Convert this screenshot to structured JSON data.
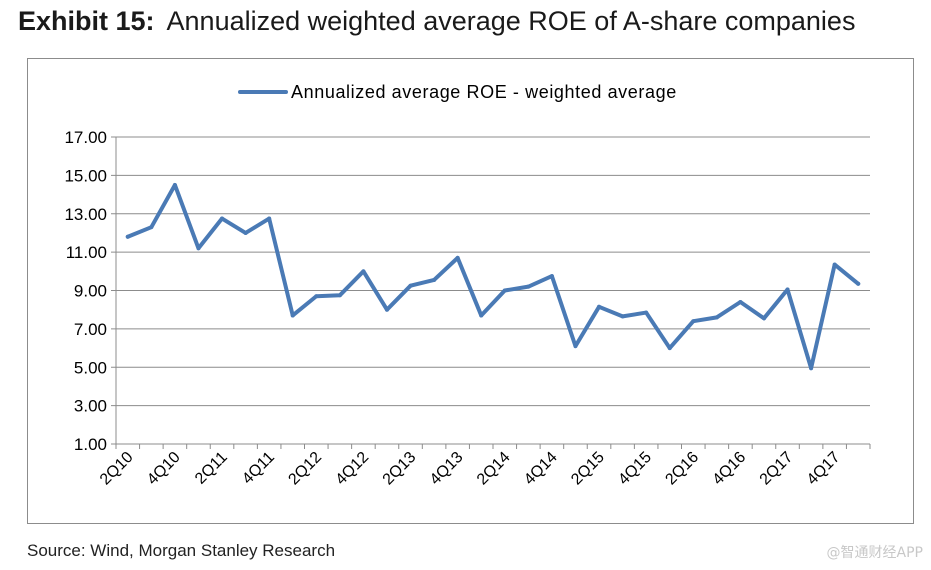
{
  "header": {
    "exhibit_label": "Exhibit 15:",
    "title_text": "Annualized weighted average ROE of A-share companies"
  },
  "footer": {
    "source": "Source: Wind, Morgan Stanley Research",
    "watermark": "@智通财经APP"
  },
  "chart_data": {
    "type": "line",
    "title": "",
    "xlabel": "",
    "ylabel": "",
    "ylim": [
      1,
      17
    ],
    "yticks": [
      "1.00",
      "3.00",
      "5.00",
      "7.00",
      "9.00",
      "11.00",
      "13.00",
      "15.00",
      "17.00"
    ],
    "grid": true,
    "legend_position": "top-center",
    "x": [
      "2Q10",
      "3Q10",
      "4Q10",
      "1Q11",
      "2Q11",
      "3Q11",
      "4Q11",
      "1Q12",
      "2Q12",
      "3Q12",
      "4Q12",
      "1Q13",
      "2Q13",
      "3Q13",
      "4Q13",
      "1Q14",
      "2Q14",
      "3Q14",
      "4Q14",
      "1Q15",
      "2Q15",
      "3Q15",
      "4Q15",
      "1Q16",
      "2Q16",
      "3Q16",
      "4Q16",
      "1Q17",
      "2Q17",
      "3Q17",
      "4Q17",
      "1Q18"
    ],
    "x_tick_labels": [
      "2Q10",
      "",
      "4Q10",
      "",
      "2Q11",
      "",
      "4Q11",
      "",
      "2Q12",
      "",
      "4Q12",
      "",
      "2Q13",
      "",
      "4Q13",
      "",
      "2Q14",
      "",
      "4Q14",
      "",
      "2Q15",
      "",
      "4Q15",
      "",
      "2Q16",
      "",
      "4Q16",
      "",
      "2Q17",
      "",
      "4Q17",
      ""
    ],
    "series": [
      {
        "name": "Annualized average ROE - weighted average",
        "color": "#4a7ab5",
        "values": [
          11.8,
          12.3,
          14.5,
          11.2,
          12.75,
          12.0,
          12.75,
          7.7,
          8.7,
          8.75,
          10.0,
          8.0,
          9.25,
          9.55,
          10.7,
          7.7,
          9.0,
          9.2,
          9.75,
          6.1,
          8.15,
          7.65,
          7.85,
          6.0,
          7.4,
          7.6,
          8.4,
          7.55,
          9.05,
          4.95,
          10.35,
          9.35
        ]
      }
    ]
  }
}
